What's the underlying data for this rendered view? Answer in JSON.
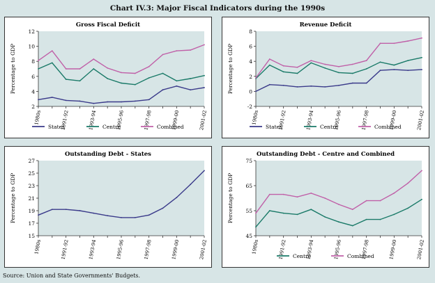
{
  "figure_title": "Chart IV.3: Major Fiscal Indicators during the 1990s",
  "source": "Source: Union and State Governments' Budgets.",
  "colors": {
    "states": "#3a3a8a",
    "centre": "#1a7a68",
    "combined": "#c060a8",
    "debt": "#3a3a8a",
    "grid_bg": "#d7e5e6"
  },
  "chart_data": [
    {
      "type": "line",
      "title": "Gross Fiscal Deficit",
      "ylabel": "Percentage to GDP",
      "yticks": [
        "2",
        "4",
        "6",
        "8",
        "10",
        "12"
      ],
      "ylim": [
        2,
        12
      ],
      "x": [
        1990,
        1991,
        1992,
        1993,
        1994,
        1995,
        1996,
        1997,
        1998,
        1999,
        2000,
        2001,
        2002
      ],
      "xticks": [
        "1980s",
        "1991-92",
        "1993-94",
        "1995-96",
        "1997-98",
        "1999-00",
        "2001-02"
      ],
      "series": [
        {
          "name": "States",
          "color_key": "states",
          "values": [
            2.9,
            3.2,
            2.8,
            2.7,
            2.4,
            2.6,
            2.6,
            2.7,
            2.9,
            4.2,
            4.7,
            4.2,
            4.5
          ]
        },
        {
          "name": "Centre",
          "color_key": "centre",
          "values": [
            7.0,
            7.8,
            5.6,
            5.4,
            7.0,
            5.7,
            5.1,
            4.9,
            5.8,
            6.4,
            5.4,
            5.7,
            6.1
          ]
        },
        {
          "name": "Combined",
          "color_key": "combined",
          "values": [
            8.1,
            9.4,
            7.0,
            7.0,
            8.3,
            7.1,
            6.5,
            6.4,
            7.3,
            8.9,
            9.4,
            9.5,
            10.2
          ]
        }
      ]
    },
    {
      "type": "line",
      "title": "Revenue Deficit",
      "ylabel": "Percentage to GDP",
      "yticks": [
        "-2",
        "0",
        "2",
        "4",
        "6",
        "8"
      ],
      "ylim": [
        -2,
        8
      ],
      "x": [
        1990,
        1991,
        1992,
        1993,
        1994,
        1995,
        1996,
        1997,
        1998,
        1999,
        2000,
        2001,
        2002
      ],
      "xticks": [
        "1980s",
        "1991-92",
        "1993-94",
        "1995-96",
        "1997-98",
        "1999-00",
        "2001-02"
      ],
      "series": [
        {
          "name": "States",
          "color_key": "states",
          "values": [
            0.0,
            0.9,
            0.8,
            0.6,
            0.7,
            0.6,
            0.8,
            1.1,
            1.1,
            2.8,
            2.9,
            2.8,
            2.9
          ]
        },
        {
          "name": "Centre",
          "color_key": "centre",
          "values": [
            1.7,
            3.5,
            2.6,
            2.4,
            3.8,
            3.1,
            2.5,
            2.4,
            3.0,
            3.9,
            3.5,
            4.1,
            4.5
          ]
        },
        {
          "name": "Combined",
          "color_key": "combined",
          "values": [
            1.8,
            4.3,
            3.4,
            3.2,
            4.1,
            3.6,
            3.3,
            3.6,
            4.1,
            6.4,
            6.4,
            6.7,
            7.1
          ]
        }
      ]
    },
    {
      "type": "line",
      "title": "Outstanding Debt - States",
      "ylabel": "Percentage to GDP",
      "yticks": [
        "15",
        "17",
        "19",
        "21",
        "23",
        "25",
        "27"
      ],
      "ylim": [
        15,
        27
      ],
      "x": [
        1990,
        1991,
        1992,
        1993,
        1994,
        1995,
        1996,
        1997,
        1998,
        1999,
        2000,
        2001,
        2002
      ],
      "xticks": [
        "1980s",
        "1991-92",
        "1993-94",
        "1995-96",
        "1997-98",
        "1999-00",
        "2001-02"
      ],
      "series": [
        {
          "name": "States",
          "color_key": "debt",
          "values": [
            18.3,
            19.2,
            19.2,
            19.0,
            18.6,
            18.2,
            17.9,
            17.9,
            18.3,
            19.4,
            21.1,
            23.2,
            25.4
          ]
        }
      ]
    },
    {
      "type": "line",
      "title": "Outstanding Debt - Centre and Combined",
      "ylabel": "Percentage to GDP",
      "yticks": [
        "45",
        "55",
        "65",
        "75"
      ],
      "ylim": [
        45,
        75
      ],
      "x": [
        1990,
        1991,
        1992,
        1993,
        1994,
        1995,
        1996,
        1997,
        1998,
        1999,
        2000,
        2001,
        2002
      ],
      "xticks": [
        "1980s",
        "1991-92",
        "1993-94",
        "1995-96",
        "1997-98",
        "1999-00",
        "2001-02"
      ],
      "series": [
        {
          "name": "Centre",
          "color_key": "centre",
          "values": [
            48.5,
            55.0,
            54.0,
            53.5,
            55.5,
            52.5,
            50.5,
            49.0,
            51.5,
            51.5,
            53.5,
            56.0,
            59.5
          ]
        },
        {
          "name": "Combined",
          "color_key": "combined",
          "values": [
            54.0,
            61.5,
            61.5,
            60.5,
            62.0,
            60.0,
            57.5,
            55.5,
            59.0,
            59.0,
            62.0,
            66.0,
            71.0
          ]
        }
      ]
    }
  ]
}
